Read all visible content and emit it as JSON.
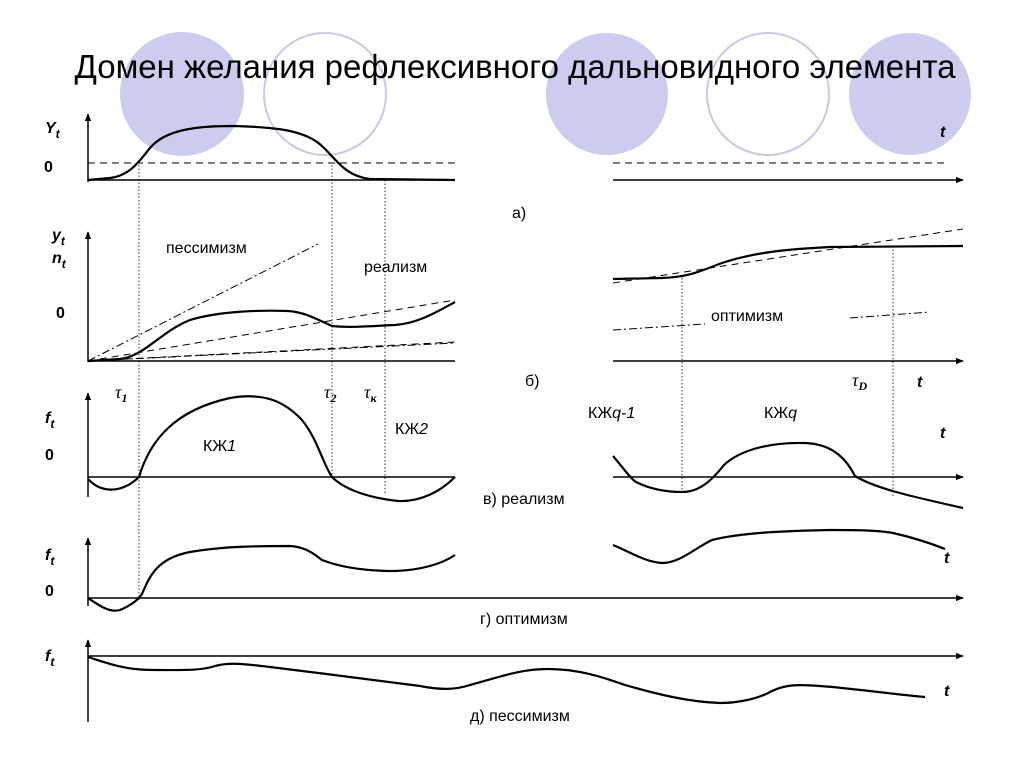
{
  "title": "Домен желания рефлексивного дальновидного элемента",
  "panels": {
    "a": {
      "y_label": "Y",
      "y_sub": "t",
      "zero": "0",
      "x_label": "t",
      "caption": "а)"
    },
    "b": {
      "y_label1": "y",
      "y_sub1": "t",
      "y_label2": "n",
      "y_sub2": "t",
      "zero": "0",
      "x_label": "t",
      "caption": "б)",
      "pessimism": "пессимизм",
      "realism": "реализм",
      "optimism": "оптимизм",
      "tau1": "τ",
      "tau1_sub": "1",
      "tau2": "τ",
      "tau2_sub": "2",
      "tauk": "τ",
      "tauk_sub": "к",
      "tauD": "τ",
      "tauD_sub": "D"
    },
    "v": {
      "y_label": "f",
      "y_sub": "t",
      "zero": "0",
      "x_label": "t",
      "caption": "в) реализм",
      "kzh1_a": "КЖ",
      "kzh1_b": "1",
      "kzh2_a": "КЖ",
      "kzh2_b": "2",
      "kzhq1_a": "КЖ",
      "kzhq1_b": "q-1",
      "kzhq_a": "КЖ",
      "kzhq_b": "q"
    },
    "g": {
      "y_label": "f",
      "y_sub": "t",
      "zero": "0",
      "x_label": "t",
      "caption": "г) оптимизм"
    },
    "d": {
      "y_label": "f",
      "y_sub": "t",
      "x_label": "t",
      "caption": "д) пессимизм"
    }
  },
  "colors": {
    "circle_fill": "#ccccee",
    "circle_stroke": "#c8c8e8",
    "line": "#000000"
  }
}
